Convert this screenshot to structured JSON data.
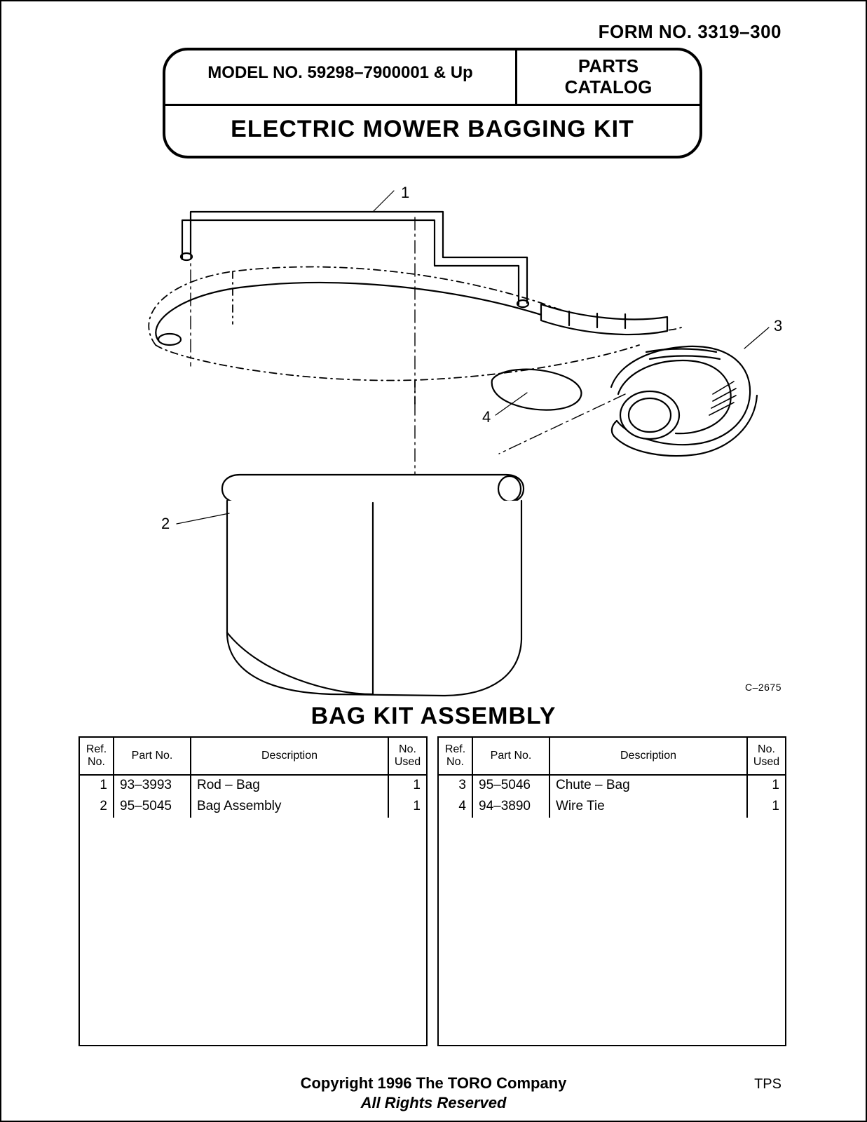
{
  "form_no": "FORM NO. 3319–300",
  "model_no": "MODEL NO. 59298–7900001 & Up",
  "parts_catalog_line1": "PARTS",
  "parts_catalog_line2": "CATALOG",
  "product_title": "ELECTRIC MOWER BAGGING KIT",
  "callouts": {
    "c1": "1",
    "c2": "2",
    "c3": "3",
    "c4": "4"
  },
  "drawing_code": "C–2675",
  "assembly_title": "BAG KIT ASSEMBLY",
  "table_headers": {
    "ref": "Ref.\nNo.",
    "part": "Part No.",
    "desc": "Description",
    "used": "No.\nUsed"
  },
  "parts_left": [
    {
      "ref": "1",
      "part": "93–3993",
      "desc": "Rod – Bag",
      "used": "1"
    },
    {
      "ref": "2",
      "part": "95–5045",
      "desc": "Bag Assembly",
      "used": "1"
    }
  ],
  "parts_right": [
    {
      "ref": "3",
      "part": "95–5046",
      "desc": "Chute – Bag",
      "used": "1"
    },
    {
      "ref": "4",
      "part": "94–3890",
      "desc": "Wire Tie",
      "used": "1"
    }
  ],
  "copyright": "Copyright 1996 The TORO Company",
  "rights": "All Rights Reserved",
  "tps": "TPS",
  "diagram_svg": {
    "stroke": "#000000",
    "stroke_width": 2.2
  }
}
